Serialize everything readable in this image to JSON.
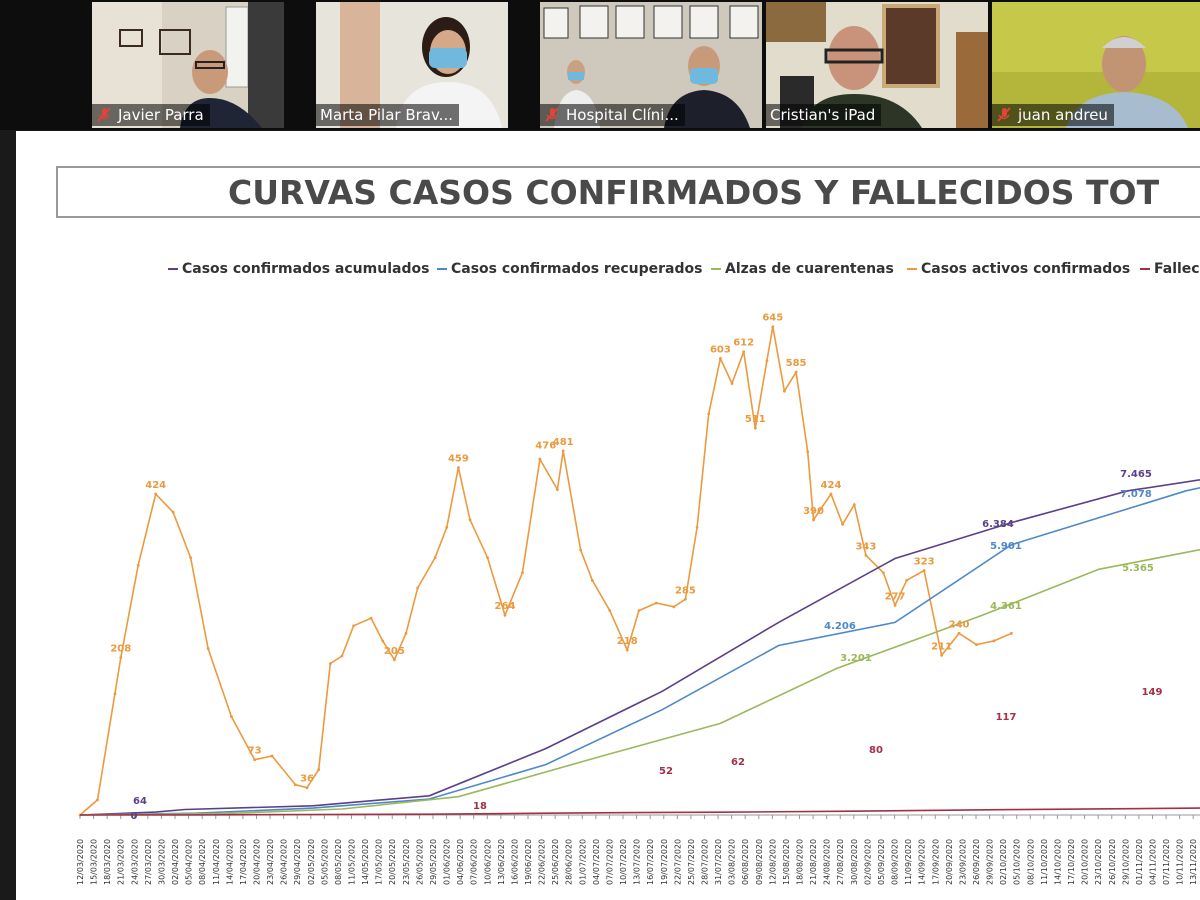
{
  "participants": [
    {
      "name": "Javier Parra",
      "muted": true
    },
    {
      "name": "Marta Pilar Brav...",
      "muted": false,
      "active_speaker": true
    },
    {
      "name": "Hospital Clíni...",
      "muted": true
    },
    {
      "name": "Cristian's iPad",
      "muted": false
    },
    {
      "name": "juan andreu",
      "muted": true
    }
  ],
  "slide": {
    "title": "CURVAS CASOS CONFIRMADOS Y FALLECIDOS TOT"
  },
  "colors": {
    "confirmados": "#5b3f8a",
    "recuperados": "#4f88c9",
    "cuarentenas": "#9bb85a",
    "activos": "#eb9a3e",
    "fallecidos": "#a33047",
    "mic_muted": "#e0443a"
  },
  "chart_data": {
    "type": "line",
    "legend": [
      {
        "name": "Casos confirmados acumulados",
        "color": "#5b3f8a"
      },
      {
        "name": "Casos confirmados recuperados",
        "color": "#4f88c9"
      },
      {
        "name": "Alzas de cuarentenas",
        "color": "#9bb85a"
      },
      {
        "name": "Casos activos confirmados",
        "color": "#eb9a3e"
      },
      {
        "name": "Falleci",
        "color": "#a33047"
      }
    ],
    "x_tick_labels": [
      "12/03/2020",
      "15/03/2020",
      "18/03/2020",
      "21/03/2020",
      "24/03/2020",
      "27/03/2020",
      "30/03/2020",
      "02/04/2020",
      "05/04/2020",
      "08/04/2020",
      "11/04/2020",
      "14/04/2020",
      "17/04/2020",
      "20/04/2020",
      "23/04/2020",
      "26/04/2020",
      "29/04/2020",
      "02/05/2020",
      "05/05/2020",
      "08/05/2020",
      "11/05/2020",
      "14/05/2020",
      "17/05/2020",
      "20/05/2020",
      "23/05/2020",
      "26/05/2020",
      "29/05/2020",
      "01/06/2020",
      "04/06/2020",
      "07/06/2020",
      "10/06/2020",
      "13/06/2020",
      "16/06/2020",
      "19/06/2020",
      "22/06/2020",
      "25/06/2020",
      "28/06/2020",
      "01/07/2020",
      "04/07/2020",
      "07/07/2020",
      "10/07/2020",
      "13/07/2020",
      "16/07/2020",
      "19/07/2020",
      "22/07/2020",
      "25/07/2020",
      "28/07/2020",
      "31/07/2020",
      "03/08/2020",
      "06/08/2020",
      "09/08/2020",
      "12/08/2020",
      "15/08/2020",
      "18/08/2020",
      "21/08/2020",
      "24/08/2020",
      "27/08/2020",
      "30/08/2020",
      "02/09/2020",
      "05/09/2020",
      "08/09/2020",
      "11/09/2020",
      "14/09/2020",
      "17/09/2020",
      "20/09/2020",
      "23/09/2020",
      "26/09/2020",
      "29/09/2020",
      "02/10/2020",
      "05/10/2020",
      "08/10/2020",
      "11/10/2020",
      "14/10/2020",
      "17/10/2020",
      "20/10/2020",
      "23/10/2020",
      "26/10/2020",
      "29/10/2020",
      "01/11/2020",
      "04/11/2020",
      "07/11/2020",
      "10/11/2020",
      "13/11/2020"
    ],
    "series": [
      {
        "name": "Casos activos confirmados",
        "key": "activos",
        "points": [
          [
            0,
            0
          ],
          [
            3,
            20
          ],
          [
            6,
            160
          ],
          [
            7,
            208
          ],
          [
            10,
            330
          ],
          [
            13,
            424
          ],
          [
            16,
            400
          ],
          [
            19,
            340
          ],
          [
            22,
            220
          ],
          [
            26,
            130
          ],
          [
            30,
            73
          ],
          [
            33,
            78
          ],
          [
            37,
            40
          ],
          [
            39,
            36
          ],
          [
            41,
            60
          ],
          [
            43,
            200
          ],
          [
            45,
            210
          ],
          [
            47,
            250
          ],
          [
            50,
            260
          ],
          [
            52,
            230
          ],
          [
            54,
            205
          ],
          [
            56,
            240
          ],
          [
            58,
            300
          ],
          [
            61,
            340
          ],
          [
            63,
            380
          ],
          [
            65,
            459
          ],
          [
            67,
            390
          ],
          [
            70,
            340
          ],
          [
            73,
            264
          ],
          [
            76,
            320
          ],
          [
            79,
            470
          ],
          [
            82,
            430
          ],
          [
            83,
            481
          ],
          [
            86,
            350
          ],
          [
            88,
            310
          ],
          [
            91,
            270
          ],
          [
            94,
            218
          ],
          [
            96,
            270
          ],
          [
            99,
            280
          ],
          [
            102,
            275
          ],
          [
            104,
            285
          ],
          [
            106,
            380
          ],
          [
            108,
            530
          ],
          [
            110,
            603
          ],
          [
            112,
            570
          ],
          [
            114,
            612
          ],
          [
            116,
            511
          ],
          [
            118,
            600
          ],
          [
            119,
            645
          ],
          [
            121,
            560
          ],
          [
            123,
            585
          ],
          [
            125,
            480
          ],
          [
            126,
            390
          ],
          [
            129,
            424
          ],
          [
            131,
            384
          ],
          [
            133,
            410
          ],
          [
            135,
            343
          ],
          [
            138,
            320
          ],
          [
            140,
            277
          ],
          [
            142,
            310
          ],
          [
            145,
            323
          ],
          [
            148,
            211
          ],
          [
            151,
            240
          ],
          [
            154,
            225
          ],
          [
            157,
            230
          ],
          [
            160,
            240
          ]
        ]
      },
      {
        "name": "Casos confirmados acumulados",
        "key": "confirmados",
        "points": [
          [
            0,
            0
          ],
          [
            13,
            64
          ],
          [
            18,
            120
          ],
          [
            40,
            200
          ],
          [
            60,
            420
          ],
          [
            80,
            1450
          ],
          [
            100,
            2700
          ],
          [
            120,
            4206
          ],
          [
            140,
            5600
          ],
          [
            160,
            6384
          ],
          [
            180,
            7078
          ],
          [
            200,
            7465
          ],
          [
            213,
            8000
          ]
        ]
      },
      {
        "name": "Casos confirmados recuperados",
        "key": "recuperados",
        "points": [
          [
            0,
            0
          ],
          [
            20,
            40
          ],
          [
            40,
            150
          ],
          [
            60,
            350
          ],
          [
            80,
            1100
          ],
          [
            100,
            2300
          ],
          [
            120,
            3700
          ],
          [
            140,
            4206
          ],
          [
            160,
            5901
          ],
          [
            190,
            7078
          ],
          [
            213,
            7700
          ]
        ]
      },
      {
        "name": "Alzas de cuarentenas",
        "key": "cuarentenas",
        "points": [
          [
            0,
            0
          ],
          [
            25,
            30
          ],
          [
            45,
            130
          ],
          [
            65,
            400
          ],
          [
            90,
            1300
          ],
          [
            110,
            2000
          ],
          [
            130,
            3201
          ],
          [
            155,
            4361
          ],
          [
            175,
            5365
          ],
          [
            213,
            6300
          ]
        ]
      },
      {
        "name": "Fallecidos",
        "key": "fallecidos",
        "points": [
          [
            0,
            0
          ],
          [
            20,
            2
          ],
          [
            40,
            10
          ],
          [
            60,
            18
          ],
          [
            80,
            40
          ],
          [
            95,
            52
          ],
          [
            110,
            62
          ],
          [
            130,
            80
          ],
          [
            160,
            117
          ],
          [
            190,
            149
          ],
          [
            213,
            170
          ]
        ]
      }
    ],
    "data_labels": {
      "activos": [
        {
          "x": 7,
          "y": 208,
          "text": "208"
        },
        {
          "x": 13,
          "y": 424,
          "text": "424"
        },
        {
          "x": 30,
          "y": 73,
          "text": "73"
        },
        {
          "x": 39,
          "y": 36,
          "text": "36"
        },
        {
          "x": 54,
          "y": 205,
          "text": "205"
        },
        {
          "x": 65,
          "y": 459,
          "text": "459"
        },
        {
          "x": 73,
          "y": 264,
          "text": "264"
        },
        {
          "x": 80,
          "y": 476,
          "text": "476"
        },
        {
          "x": 83,
          "y": 481,
          "text": "481"
        },
        {
          "x": 94,
          "y": 218,
          "text": "218"
        },
        {
          "x": 104,
          "y": 285,
          "text": "285"
        },
        {
          "x": 110,
          "y": 603,
          "text": "603"
        },
        {
          "x": 114,
          "y": 612,
          "text": "612"
        },
        {
          "x": 116,
          "y": 511,
          "text": "511"
        },
        {
          "x": 119,
          "y": 645,
          "text": "645"
        },
        {
          "x": 123,
          "y": 585,
          "text": "585"
        },
        {
          "x": 126,
          "y": 390,
          "text": "390"
        },
        {
          "x": 129,
          "y": 424,
          "text": "424"
        },
        {
          "x": 135,
          "y": 343,
          "text": "343"
        },
        {
          "x": 140,
          "y": 277,
          "text": "277"
        },
        {
          "x": 145,
          "y": 323,
          "text": "323"
        },
        {
          "x": 148,
          "y": 211,
          "text": "211"
        },
        {
          "x": 151,
          "y": 240,
          "text": "240"
        }
      ],
      "other": [
        {
          "text": "64",
          "series": "confirmados"
        },
        {
          "text": "0",
          "series": "confirmados"
        },
        {
          "text": "4.206",
          "series": "recuperados"
        },
        {
          "text": "5.901",
          "series": "recuperados"
        },
        {
          "text": "6.384",
          "series": "confirmados"
        },
        {
          "text": "7.078",
          "series": "recuperados"
        },
        {
          "text": "7.465",
          "series": "confirmados"
        },
        {
          "text": "3.201",
          "series": "cuarentenas"
        },
        {
          "text": "4.361",
          "series": "cuarentenas"
        },
        {
          "text": "5.365",
          "series": "cuarentenas"
        },
        {
          "text": "18",
          "series": "fallecidos"
        },
        {
          "text": "52",
          "series": "fallecidos"
        },
        {
          "text": "62",
          "series": "fallecidos"
        },
        {
          "text": "80",
          "series": "fallecidos"
        },
        {
          "text": "117",
          "series": "fallecidos"
        },
        {
          "text": "149",
          "series": "fallecidos"
        }
      ]
    }
  }
}
